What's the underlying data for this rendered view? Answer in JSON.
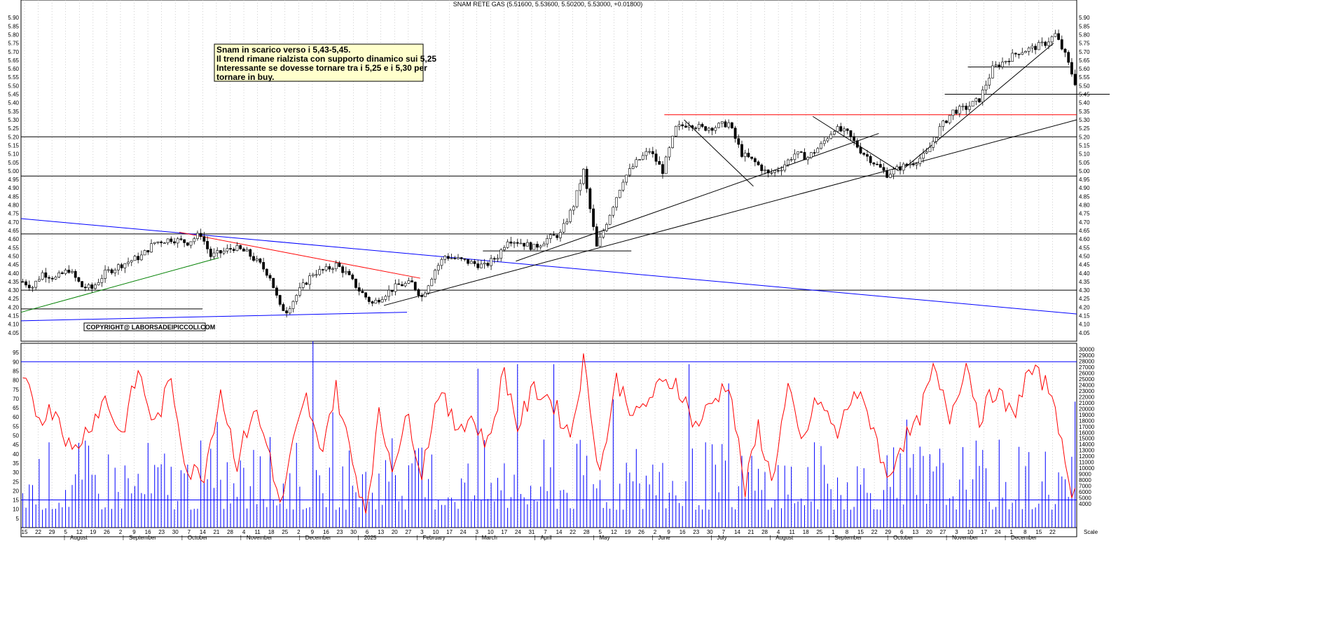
{
  "chart_data": {
    "type": "candlestick",
    "title": "SNAM RETE GAS (5.51600, 5.53600, 5.50200, 5.53000, +0.01800)",
    "price_axis": {
      "min": 4.0,
      "max": 5.95,
      "step": 0.05,
      "ticks": [
        "4.05",
        "4.10",
        "4.15",
        "4.20",
        "4.25",
        "4.30",
        "4.35",
        "4.40",
        "4.45",
        "4.50",
        "4.55",
        "4.60",
        "4.65",
        "4.70",
        "4.75",
        "4.80",
        "4.85",
        "4.90",
        "4.95",
        "5.00",
        "5.05",
        "5.10",
        "5.15",
        "5.20",
        "5.25",
        "5.30",
        "5.35",
        "5.40",
        "5.45",
        "5.50",
        "5.55",
        "5.60",
        "5.65",
        "5.70",
        "5.75",
        "5.80",
        "5.85",
        "5.90"
      ]
    },
    "volume_axis": {
      "min": 0,
      "max": 31000,
      "ticks": [
        "4000",
        "5000",
        "6000",
        "7000",
        "8000",
        "9000",
        "10000",
        "11000",
        "12000",
        "13000",
        "14000",
        "15000",
        "16000",
        "17000",
        "18000",
        "19000",
        "20000",
        "21000",
        "22000",
        "23000",
        "24000",
        "25000",
        "26000",
        "27000",
        "28000",
        "29000",
        "30000"
      ]
    },
    "oscillator_axis": {
      "min": 0,
      "max": 100,
      "ticks": [
        "5",
        "10",
        "15",
        "20",
        "25",
        "30",
        "35",
        "40",
        "45",
        "50",
        "55",
        "60",
        "65",
        "70",
        "75",
        "80",
        "85",
        "90",
        "95"
      ]
    },
    "oscillator_levels": [
      90,
      15
    ],
    "day_labels": [
      "15",
      "22",
      "29",
      "5",
      "12",
      "19",
      "26",
      "2",
      "9",
      "16",
      "23",
      "30",
      "7",
      "14",
      "21",
      "28",
      "4",
      "11",
      "18",
      "25",
      "2",
      "9",
      "16",
      "23",
      "30",
      "6",
      "13",
      "20",
      "27",
      "3",
      "10",
      "17",
      "24",
      "3",
      "10",
      "17",
      "24",
      "31",
      "7",
      "14",
      "22",
      "28",
      "5",
      "12",
      "19",
      "26",
      "2",
      "9",
      "16",
      "23",
      "30",
      "7",
      "14",
      "21",
      "28",
      "4",
      "11",
      "18",
      "25",
      "1",
      "8",
      "15",
      "22",
      "29",
      "6",
      "13",
      "20",
      "27",
      "3",
      "10",
      "17",
      "24",
      "1",
      "8",
      "15",
      "22"
    ],
    "month_labels": [
      "August",
      "September",
      "October",
      "November",
      "December",
      "2025",
      "February",
      "March",
      "April",
      "May",
      "June",
      "July",
      "August",
      "September",
      "October",
      "November",
      "December"
    ],
    "close_path": [
      {
        "x": 0,
        "y": 4.35
      },
      {
        "x": 3,
        "y": 4.32
      },
      {
        "x": 6,
        "y": 4.4
      },
      {
        "x": 10,
        "y": 4.37
      },
      {
        "x": 14,
        "y": 4.42
      },
      {
        "x": 18,
        "y": 4.32
      },
      {
        "x": 21,
        "y": 4.31
      },
      {
        "x": 25,
        "y": 4.4
      },
      {
        "x": 30,
        "y": 4.45
      },
      {
        "x": 36,
        "y": 4.5
      },
      {
        "x": 40,
        "y": 4.58
      },
      {
        "x": 45,
        "y": 4.6
      },
      {
        "x": 50,
        "y": 4.58
      },
      {
        "x": 54,
        "y": 4.63
      },
      {
        "x": 57,
        "y": 4.5
      },
      {
        "x": 60,
        "y": 4.52
      },
      {
        "x": 64,
        "y": 4.55
      },
      {
        "x": 68,
        "y": 4.52
      },
      {
        "x": 72,
        "y": 4.45
      },
      {
        "x": 75,
        "y": 4.38
      },
      {
        "x": 78,
        "y": 4.2
      },
      {
        "x": 80,
        "y": 4.18
      },
      {
        "x": 84,
        "y": 4.3
      },
      {
        "x": 88,
        "y": 4.4
      },
      {
        "x": 92,
        "y": 4.42
      },
      {
        "x": 95,
        "y": 4.45
      },
      {
        "x": 98,
        "y": 4.4
      },
      {
        "x": 102,
        "y": 4.3
      },
      {
        "x": 106,
        "y": 4.22
      },
      {
        "x": 110,
        "y": 4.28
      },
      {
        "x": 114,
        "y": 4.33
      },
      {
        "x": 118,
        "y": 4.34
      },
      {
        "x": 121,
        "y": 4.26
      },
      {
        "x": 125,
        "y": 4.42
      },
      {
        "x": 128,
        "y": 4.5
      },
      {
        "x": 132,
        "y": 4.48
      },
      {
        "x": 136,
        "y": 4.46
      },
      {
        "x": 140,
        "y": 4.44
      },
      {
        "x": 144,
        "y": 4.5
      },
      {
        "x": 147,
        "y": 4.6
      },
      {
        "x": 151,
        "y": 4.58
      },
      {
        "x": 155,
        "y": 4.55
      },
      {
        "x": 159,
        "y": 4.6
      },
      {
        "x": 163,
        "y": 4.63
      },
      {
        "x": 167,
        "y": 4.8
      },
      {
        "x": 170,
        "y": 5.0
      },
      {
        "x": 174,
        "y": 4.55
      },
      {
        "x": 178,
        "y": 4.75
      },
      {
        "x": 182,
        "y": 4.95
      },
      {
        "x": 186,
        "y": 5.05
      },
      {
        "x": 190,
        "y": 5.12
      },
      {
        "x": 194,
        "y": 5.0
      },
      {
        "x": 198,
        "y": 5.25
      },
      {
        "x": 202,
        "y": 5.28
      },
      {
        "x": 206,
        "y": 5.25
      },
      {
        "x": 210,
        "y": 5.26
      },
      {
        "x": 214,
        "y": 5.28
      },
      {
        "x": 218,
        "y": 5.1
      },
      {
        "x": 222,
        "y": 5.05
      },
      {
        "x": 226,
        "y": 4.98
      },
      {
        "x": 230,
        "y": 5.02
      },
      {
        "x": 234,
        "y": 5.1
      },
      {
        "x": 238,
        "y": 5.08
      },
      {
        "x": 242,
        "y": 5.15
      },
      {
        "x": 246,
        "y": 5.25
      },
      {
        "x": 250,
        "y": 5.22
      },
      {
        "x": 254,
        "y": 5.12
      },
      {
        "x": 258,
        "y": 5.05
      },
      {
        "x": 262,
        "y": 4.98
      },
      {
        "x": 266,
        "y": 5.02
      },
      {
        "x": 270,
        "y": 5.05
      },
      {
        "x": 274,
        "y": 5.1
      },
      {
        "x": 278,
        "y": 5.25
      },
      {
        "x": 282,
        "y": 5.35
      },
      {
        "x": 286,
        "y": 5.37
      },
      {
        "x": 290,
        "y": 5.42
      },
      {
        "x": 294,
        "y": 5.6
      },
      {
        "x": 298,
        "y": 5.65
      },
      {
        "x": 302,
        "y": 5.7
      },
      {
        "x": 306,
        "y": 5.72
      },
      {
        "x": 310,
        "y": 5.75
      },
      {
        "x": 313,
        "y": 5.8
      },
      {
        "x": 316,
        "y": 5.68
      },
      {
        "x": 319,
        "y": 5.52
      }
    ],
    "osc_path": [
      {
        "x": 0,
        "y": 80
      },
      {
        "x": 5,
        "y": 60
      },
      {
        "x": 10,
        "y": 65
      },
      {
        "x": 15,
        "y": 40
      },
      {
        "x": 20,
        "y": 55
      },
      {
        "x": 25,
        "y": 70
      },
      {
        "x": 30,
        "y": 50
      },
      {
        "x": 35,
        "y": 85
      },
      {
        "x": 40,
        "y": 55
      },
      {
        "x": 45,
        "y": 80
      },
      {
        "x": 50,
        "y": 30
      },
      {
        "x": 55,
        "y": 30
      },
      {
        "x": 60,
        "y": 75
      },
      {
        "x": 65,
        "y": 35
      },
      {
        "x": 70,
        "y": 65
      },
      {
        "x": 75,
        "y": 40
      },
      {
        "x": 78,
        "y": 10
      },
      {
        "x": 82,
        "y": 45
      },
      {
        "x": 86,
        "y": 70
      },
      {
        "x": 90,
        "y": 40
      },
      {
        "x": 95,
        "y": 75
      },
      {
        "x": 100,
        "y": 35
      },
      {
        "x": 104,
        "y": 10
      },
      {
        "x": 108,
        "y": 60
      },
      {
        "x": 112,
        "y": 35
      },
      {
        "x": 117,
        "y": 60
      },
      {
        "x": 121,
        "y": 30
      },
      {
        "x": 126,
        "y": 75
      },
      {
        "x": 131,
        "y": 55
      },
      {
        "x": 136,
        "y": 60
      },
      {
        "x": 141,
        "y": 45
      },
      {
        "x": 146,
        "y": 85
      },
      {
        "x": 150,
        "y": 55
      },
      {
        "x": 155,
        "y": 75
      },
      {
        "x": 160,
        "y": 70
      },
      {
        "x": 166,
        "y": 50
      },
      {
        "x": 170,
        "y": 90
      },
      {
        "x": 175,
        "y": 30
      },
      {
        "x": 180,
        "y": 80
      },
      {
        "x": 186,
        "y": 60
      },
      {
        "x": 192,
        "y": 75
      },
      {
        "x": 198,
        "y": 80
      },
      {
        "x": 204,
        "y": 55
      },
      {
        "x": 210,
        "y": 70
      },
      {
        "x": 214,
        "y": 80
      },
      {
        "x": 219,
        "y": 20
      },
      {
        "x": 223,
        "y": 55
      },
      {
        "x": 227,
        "y": 25
      },
      {
        "x": 232,
        "y": 75
      },
      {
        "x": 236,
        "y": 45
      },
      {
        "x": 241,
        "y": 70
      },
      {
        "x": 247,
        "y": 50
      },
      {
        "x": 252,
        "y": 75
      },
      {
        "x": 258,
        "y": 55
      },
      {
        "x": 262,
        "y": 25
      },
      {
        "x": 266,
        "y": 45
      },
      {
        "x": 271,
        "y": 55
      },
      {
        "x": 276,
        "y": 85
      },
      {
        "x": 281,
        "y": 60
      },
      {
        "x": 286,
        "y": 90
      },
      {
        "x": 290,
        "y": 60
      },
      {
        "x": 295,
        "y": 75
      },
      {
        "x": 300,
        "y": 60
      },
      {
        "x": 305,
        "y": 85
      },
      {
        "x": 309,
        "y": 80
      },
      {
        "x": 313,
        "y": 70
      },
      {
        "x": 316,
        "y": 30
      },
      {
        "x": 319,
        "y": 18
      }
    ],
    "horizontal_lines": [
      {
        "y": 5.2,
        "color": "#000000"
      },
      {
        "y": 4.97,
        "color": "#000000"
      },
      {
        "y": 4.63,
        "color": "#000000"
      },
      {
        "y": 4.3,
        "color": "#000000"
      },
      {
        "y": 5.33,
        "color": "#ff0000"
      }
    ],
    "colors": {
      "candle": "#000000",
      "oscillator": "#ff0000",
      "volume": "#0000ff",
      "grid": "#b0b0b0",
      "channel": "#0000ff",
      "resistance": "#ff0000",
      "trend_up": "#008000"
    }
  },
  "annotation": {
    "lines": [
      "Snam in scarico verso i 5,43-5,45.",
      "Il trend rimane rialzista con supporto dinamico sui 5,25",
      "Interessante se dovesse tornare  tra i 5,25 e i 5,30 per",
      "tornare in buy."
    ]
  },
  "copyright": "COPYRIGHT@ LABORSADEIPICCOLI.COM",
  "volume_unit_label": "Scale"
}
